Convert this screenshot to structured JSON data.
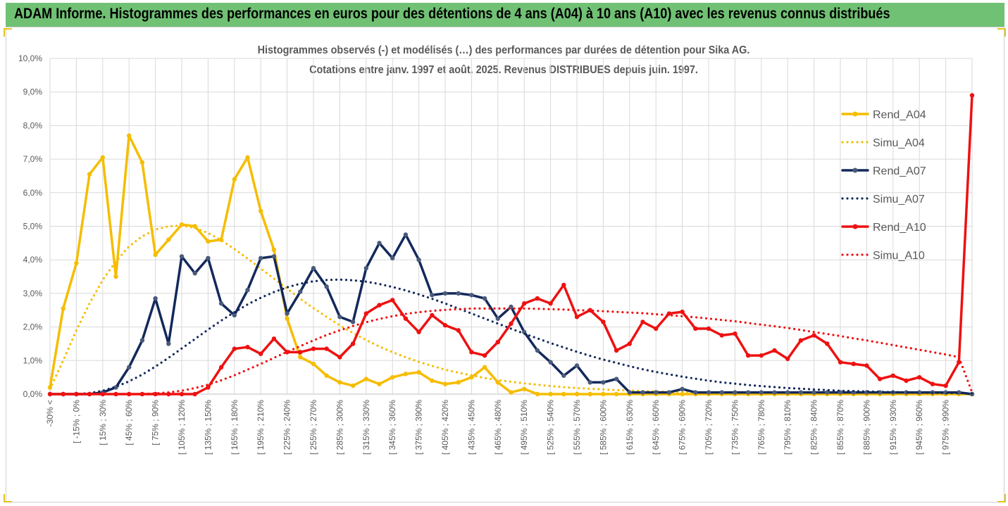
{
  "banner": {
    "title": "ADAM Informe. Histogrammes des performances en euros pour des détentions de 4 ans (A04) à 10 ans (A10) avec les revenus connus distribués"
  },
  "colors": {
    "banner_bg": "#70c174",
    "a04": "#f5bd00",
    "a07": "#13295b",
    "a10": "#ee1111",
    "marker_grey": "#7f7f7f"
  },
  "chart_data": {
    "type": "line",
    "title": "Histogrammes observés (-) et modélisés (…) des performances par durées de détention pour Sika AG.",
    "subtitle": "Cotations entre janv. 1997 et août. 2025. Revenus DISTRIBUES depuis juin. 1997.",
    "ylim": [
      0,
      10
    ],
    "y_ticks": [
      "0,0%",
      "1,0%",
      "2,0%",
      "3,0%",
      "4,0%",
      "5,0%",
      "6,0%",
      "7,0%",
      "8,0%",
      "9,0%",
      "10,0%"
    ],
    "x_labels": [
      "-30% <",
      "[ -15% ; 0%",
      "[ 15% ; 30%",
      "[ 45% ; 60%",
      "[ 75% ; 90%",
      "[ 105% ; 120%",
      "[ 135% ; 150%",
      "[ 165% ; 180%",
      "[ 195% ; 210%",
      "[ 225% ; 240%",
      "[ 255% ; 270%",
      "[ 285% ; 300%",
      "[ 315% ; 330%",
      "[ 345% ; 360%",
      "[ 375% ; 390%",
      "[ 405% ; 420%",
      "[ 435% ; 450%",
      "[ 465% ; 480%",
      "[ 495% ; 510%",
      "[ 525% ; 540%",
      "[ 555% ; 570%",
      "[ 585% ; 600%",
      "[ 615% ; 630%",
      "[ 645% ; 660%",
      "[ 675% ; 690%",
      "[ 705% ; 720%",
      "[ 735% ; 750%",
      "[ 765% ; 780%",
      "[ 795% ; 810%",
      "[ 825% ; 840%",
      "[ 855% ; 870%",
      "[ 885% ; 900%",
      "[ 915% ; 930%",
      "[ 945% ; 960%",
      "[ 975% ; 990%"
    ],
    "grid": true,
    "legend_position": "right",
    "series": [
      {
        "name": "Rend_A04",
        "style": "solid",
        "color": "#f5bd00",
        "values": [
          0.2,
          2.55,
          3.9,
          6.55,
          7.05,
          3.5,
          7.7,
          6.9,
          4.15,
          4.6,
          5.05,
          5.0,
          4.55,
          4.6,
          6.4,
          7.05,
          5.45,
          4.3,
          2.25,
          1.1,
          0.9,
          0.55,
          0.35,
          0.25,
          0.45,
          0.3,
          0.5,
          0.6,
          0.65,
          0.4,
          0.3,
          0.35,
          0.5,
          0.8,
          0.35,
          0.05,
          0.15,
          0,
          0,
          0,
          0,
          0,
          0,
          0,
          0,
          0,
          0,
          0,
          0,
          0,
          0,
          0,
          0,
          0,
          0,
          0,
          0,
          0,
          0,
          0,
          0,
          0,
          0,
          0,
          0,
          0,
          0,
          0,
          0,
          0,
          0
        ]
      },
      {
        "name": "Simu_A04",
        "style": "dotted",
        "color": "#f5bd00",
        "values": [
          0.15,
          1.0,
          1.9,
          2.7,
          3.4,
          3.95,
          4.4,
          4.7,
          4.9,
          5.0,
          5.02,
          4.95,
          4.8,
          4.58,
          4.32,
          4.04,
          3.74,
          3.44,
          3.14,
          2.84,
          2.56,
          2.3,
          2.05,
          1.82,
          1.61,
          1.42,
          1.25,
          1.1,
          0.96,
          0.84,
          0.73,
          0.64,
          0.56,
          0.48,
          0.42,
          0.37,
          0.32,
          0.28,
          0.24,
          0.21,
          0.18,
          0.16,
          0.14,
          0.12,
          0.11,
          0.09,
          0.08,
          0.07,
          0.06,
          0.05,
          0.05,
          0.04,
          0.04,
          0.03,
          0.03,
          0.03,
          0.02,
          0.02,
          0.02,
          0.02,
          0.01,
          0.01,
          0.01,
          0.01,
          0.01,
          0.01,
          0.01,
          0.01,
          0.01,
          0.01,
          0.01
        ]
      },
      {
        "name": "Rend_A07",
        "style": "solid",
        "color": "#13295b",
        "values": [
          0,
          0,
          0,
          0,
          0.05,
          0.2,
          0.8,
          1.6,
          2.85,
          1.5,
          4.1,
          3.6,
          4.05,
          2.7,
          2.35,
          3.1,
          4.05,
          4.1,
          2.4,
          3.05,
          3.75,
          3.2,
          2.3,
          2.15,
          3.75,
          4.5,
          4.05,
          4.75,
          4.0,
          2.95,
          3.0,
          3.0,
          2.95,
          2.85,
          2.25,
          2.6,
          1.85,
          1.3,
          0.95,
          0.55,
          0.85,
          0.35,
          0.35,
          0.45,
          0.05,
          0.05,
          0.05,
          0.05,
          0.15,
          0.05,
          0.05,
          0.05,
          0.05,
          0.05,
          0.05,
          0.05,
          0.05,
          0.05,
          0.05,
          0.05,
          0.05,
          0.05,
          0.05,
          0.05,
          0.05,
          0.05,
          0.05,
          0.05,
          0.05,
          0.05,
          0
        ]
      },
      {
        "name": "Simu_A07",
        "style": "dotted",
        "color": "#13295b",
        "values": [
          0,
          0,
          0,
          0.03,
          0.1,
          0.22,
          0.38,
          0.58,
          0.82,
          1.08,
          1.36,
          1.64,
          1.92,
          2.19,
          2.44,
          2.67,
          2.87,
          3.04,
          3.18,
          3.29,
          3.36,
          3.4,
          3.41,
          3.39,
          3.35,
          3.28,
          3.19,
          3.09,
          2.97,
          2.84,
          2.7,
          2.55,
          2.4,
          2.25,
          2.1,
          1.95,
          1.8,
          1.66,
          1.52,
          1.39,
          1.26,
          1.14,
          1.03,
          0.93,
          0.83,
          0.74,
          0.66,
          0.59,
          0.52,
          0.46,
          0.4,
          0.35,
          0.31,
          0.27,
          0.24,
          0.21,
          0.18,
          0.16,
          0.14,
          0.12,
          0.1,
          0.09,
          0.08,
          0.07,
          0.06,
          0.05,
          0.04,
          0.04,
          0.03,
          0.03,
          0.02
        ]
      },
      {
        "name": "Rend_A10",
        "style": "solid",
        "color": "#ee1111",
        "values": [
          0,
          0,
          0,
          0,
          0,
          0,
          0,
          0,
          0,
          0,
          0,
          0,
          0.2,
          0.8,
          1.35,
          1.4,
          1.2,
          1.65,
          1.25,
          1.25,
          1.35,
          1.35,
          1.1,
          1.5,
          2.4,
          2.65,
          2.8,
          2.25,
          1.85,
          2.35,
          2.05,
          1.9,
          1.25,
          1.15,
          1.55,
          2.1,
          2.7,
          2.85,
          2.7,
          3.25,
          2.3,
          2.5,
          2.15,
          1.3,
          1.5,
          2.15,
          1.95,
          2.4,
          2.45,
          1.95,
          1.95,
          1.75,
          1.8,
          1.15,
          1.15,
          1.3,
          1.05,
          1.6,
          1.75,
          1.5,
          0.95,
          0.9,
          0.85,
          0.45,
          0.55,
          0.4,
          0.5,
          0.3,
          0.25,
          0.95,
          8.9
        ]
      },
      {
        "name": "Simu_A10",
        "style": "dotted",
        "color": "#ee1111",
        "values": [
          0,
          0,
          0,
          0,
          0,
          0,
          0,
          0,
          0.02,
          0.05,
          0.1,
          0.18,
          0.28,
          0.41,
          0.56,
          0.73,
          0.9,
          1.08,
          1.26,
          1.43,
          1.6,
          1.76,
          1.9,
          2.03,
          2.14,
          2.24,
          2.32,
          2.39,
          2.44,
          2.48,
          2.51,
          2.53,
          2.55,
          2.55,
          2.55,
          2.55,
          2.55,
          2.54,
          2.53,
          2.52,
          2.5,
          2.49,
          2.47,
          2.45,
          2.43,
          2.41,
          2.38,
          2.35,
          2.32,
          2.29,
          2.25,
          2.21,
          2.17,
          2.12,
          2.07,
          2.02,
          1.97,
          1.91,
          1.85,
          1.79,
          1.73,
          1.66,
          1.6,
          1.53,
          1.46,
          1.39,
          1.32,
          1.25,
          1.18,
          1.1,
          0.05
        ]
      }
    ]
  }
}
